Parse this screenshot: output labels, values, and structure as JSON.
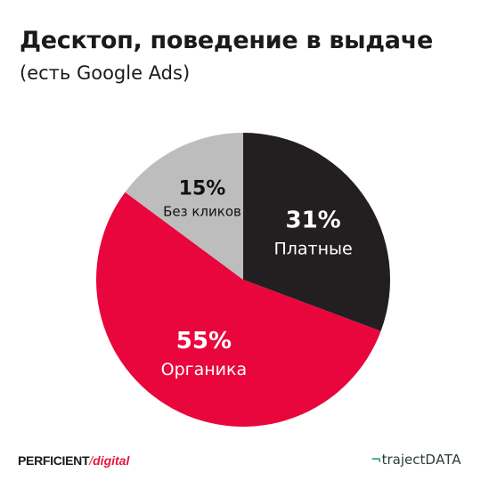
{
  "header": {
    "title": "Десктоп, поведение в выдаче",
    "subtitle": "(есть Google Ads)"
  },
  "chart_data": {
    "type": "pie",
    "title": "Десктоп, поведение в выдаче",
    "subtitle": "(есть Google Ads)",
    "slices": [
      {
        "label": "Платные",
        "value": 31,
        "value_label": "31%",
        "color": "#231f20",
        "text_color": "#ffffff"
      },
      {
        "label": "Органика",
        "value": 55,
        "value_label": "55%",
        "color": "#e8063c",
        "text_color": "#ffffff"
      },
      {
        "label": "Без кликов",
        "value": 15,
        "value_label": "15%",
        "color": "#bdbdbd",
        "text_color": "#111111"
      }
    ],
    "start_angle": "12 o'clock",
    "direction": "clockwise",
    "legend": "none"
  },
  "footer": {
    "left_brand": "PERFICIENT",
    "left_separator": "/",
    "left_sub": "digital",
    "right_mark": "¬",
    "right_brand": "traject",
    "right_data": "DATA"
  }
}
